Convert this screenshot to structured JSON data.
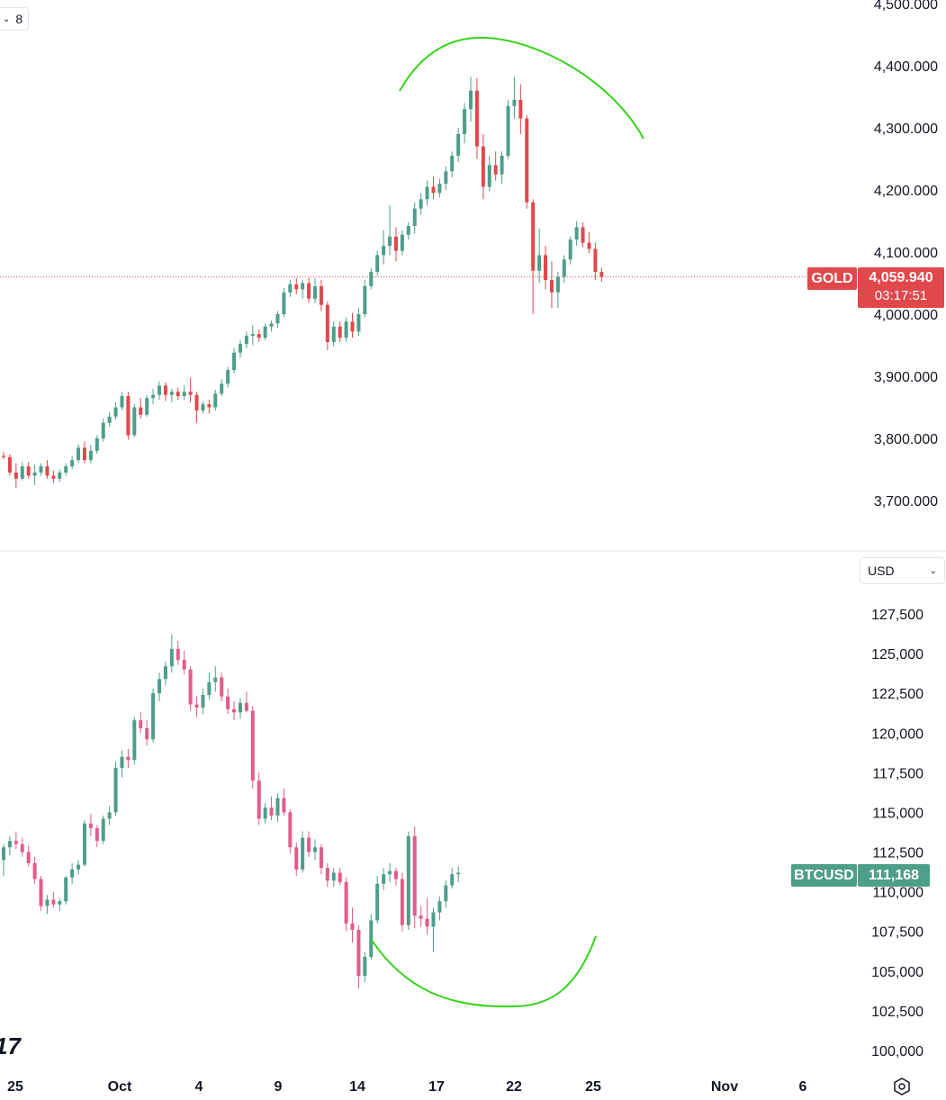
{
  "chart_data": [
    {
      "type": "candlestick",
      "symbol": "GOLD",
      "ylim": [
        3650,
        4500
      ],
      "y_ticks": [
        "4,500.000",
        "4,400.000",
        "4,300.000",
        "4,200.000",
        "4,100.000",
        "4,000.000",
        "3,900.000",
        "3,800.000",
        "3,700.000"
      ],
      "y_tick_values": [
        4500,
        4400,
        4300,
        4200,
        4100,
        4000,
        3900,
        3800,
        3700
      ],
      "last_price": 4059.94,
      "last_price_label": "4,059.940",
      "countdown": "03:17:51",
      "candles": [
        [
          3772,
          3778,
          3766,
          3770
        ],
        [
          3770,
          3775,
          3740,
          3745
        ],
        [
          3745,
          3760,
          3720,
          3735
        ],
        [
          3735,
          3762,
          3732,
          3755
        ],
        [
          3755,
          3762,
          3735,
          3740
        ],
        [
          3740,
          3758,
          3725,
          3745
        ],
        [
          3745,
          3760,
          3740,
          3755
        ],
        [
          3755,
          3765,
          3735,
          3740
        ],
        [
          3740,
          3748,
          3728,
          3735
        ],
        [
          3735,
          3750,
          3730,
          3745
        ],
        [
          3745,
          3760,
          3740,
          3755
        ],
        [
          3755,
          3772,
          3750,
          3765
        ],
        [
          3765,
          3790,
          3760,
          3785
        ],
        [
          3785,
          3795,
          3760,
          3765
        ],
        [
          3765,
          3790,
          3760,
          3780
        ],
        [
          3780,
          3805,
          3775,
          3800
        ],
        [
          3800,
          3832,
          3795,
          3825
        ],
        [
          3825,
          3842,
          3818,
          3835
        ],
        [
          3835,
          3858,
          3830,
          3850
        ],
        [
          3850,
          3875,
          3845,
          3868
        ],
        [
          3868,
          3875,
          3798,
          3805
        ],
        [
          3805,
          3855,
          3802,
          3850
        ],
        [
          3850,
          3865,
          3832,
          3838
        ],
        [
          3838,
          3870,
          3835,
          3865
        ],
        [
          3865,
          3880,
          3855,
          3870
        ],
        [
          3870,
          3892,
          3862,
          3885
        ],
        [
          3885,
          3890,
          3860,
          3870
        ],
        [
          3870,
          3880,
          3858,
          3875
        ],
        [
          3875,
          3882,
          3862,
          3868
        ],
        [
          3868,
          3885,
          3862,
          3875
        ],
        [
          3875,
          3898,
          3858,
          3870
        ],
        [
          3870,
          3875,
          3825,
          3845
        ],
        [
          3845,
          3860,
          3840,
          3855
        ],
        [
          3855,
          3862,
          3840,
          3850
        ],
        [
          3850,
          3878,
          3845,
          3872
        ],
        [
          3872,
          3895,
          3868,
          3888
        ],
        [
          3888,
          3915,
          3882,
          3910
        ],
        [
          3910,
          3945,
          3905,
          3938
        ],
        [
          3938,
          3958,
          3930,
          3952
        ],
        [
          3952,
          3972,
          3945,
          3965
        ],
        [
          3965,
          3982,
          3950,
          3968
        ],
        [
          3968,
          3975,
          3955,
          3962
        ],
        [
          3962,
          3985,
          3958,
          3980
        ],
        [
          3980,
          3990,
          3972,
          3985
        ],
        [
          3985,
          4005,
          3978,
          4000
        ],
        [
          4000,
          4042,
          3995,
          4035
        ],
        [
          4035,
          4055,
          4028,
          4048
        ],
        [
          4048,
          4058,
          4032,
          4040
        ],
        [
          4040,
          4055,
          4025,
          4050
        ],
        [
          4050,
          4058,
          4018,
          4025
        ],
        [
          4025,
          4058,
          4018,
          4045
        ],
        [
          4045,
          4055,
          4005,
          4015
        ],
        [
          4015,
          4020,
          3942,
          3955
        ],
        [
          3955,
          3988,
          3948,
          3980
        ],
        [
          3980,
          3988,
          3955,
          3962
        ],
        [
          3962,
          3995,
          3955,
          3988
        ],
        [
          3988,
          4002,
          3962,
          3972
        ],
        [
          3972,
          4010,
          3965,
          4000
        ],
        [
          4000,
          4055,
          3995,
          4045
        ],
        [
          4045,
          4075,
          4040,
          4068
        ],
        [
          4068,
          4102,
          4062,
          4095
        ],
        [
          4095,
          4135,
          4080,
          4110
        ],
        [
          4110,
          4175,
          4095,
          4125
        ],
        [
          4125,
          4140,
          4085,
          4102
        ],
        [
          4102,
          4135,
          4095,
          4128
        ],
        [
          4128,
          4148,
          4120,
          4142
        ],
        [
          4142,
          4180,
          4130,
          4170
        ],
        [
          4170,
          4195,
          4160,
          4185
        ],
        [
          4185,
          4215,
          4175,
          4205
        ],
        [
          4205,
          4222,
          4185,
          4195
        ],
        [
          4195,
          4218,
          4188,
          4210
        ],
        [
          4210,
          4238,
          4200,
          4230
        ],
        [
          4230,
          4262,
          4220,
          4255
        ],
        [
          4255,
          4300,
          4245,
          4290
        ],
        [
          4290,
          4340,
          4275,
          4330
        ],
        [
          4330,
          4382,
          4310,
          4360
        ],
        [
          4360,
          4380,
          4250,
          4270
        ],
        [
          4270,
          4290,
          4185,
          4205
        ],
        [
          4205,
          4255,
          4198,
          4240
        ],
        [
          4240,
          4262,
          4215,
          4225
        ],
        [
          4225,
          4262,
          4210,
          4255
        ],
        [
          4255,
          4345,
          4250,
          4335
        ],
        [
          4335,
          4382,
          4315,
          4345
        ],
        [
          4345,
          4370,
          4290,
          4315
        ],
        [
          4315,
          4320,
          4170,
          4180
        ],
        [
          4180,
          4185,
          4000,
          4070
        ],
        [
          4070,
          4138,
          4050,
          4095
        ],
        [
          4095,
          4110,
          4040,
          4055
        ],
        [
          4055,
          4085,
          4010,
          4035
        ],
        [
          4035,
          4068,
          4010,
          4060
        ],
        [
          4060,
          4095,
          4050,
          4088
        ],
        [
          4088,
          4125,
          4080,
          4120
        ],
        [
          4120,
          4150,
          4110,
          4140
        ],
        [
          4140,
          4148,
          4108,
          4115
        ],
        [
          4115,
          4132,
          4098,
          4105
        ],
        [
          4105,
          4115,
          4055,
          4068
        ],
        [
          4068,
          4075,
          4052,
          4060
        ]
      ]
    },
    {
      "type": "candlestick",
      "symbol": "BTCUSD",
      "currency_select": "USD",
      "ylim": [
        99000,
        130000
      ],
      "y_ticks": [
        "127,500",
        "125,000",
        "122,500",
        "120,000",
        "117,500",
        "115,000",
        "112,500",
        "110,000",
        "107,500",
        "105,000",
        "102,500",
        "100,000"
      ],
      "y_tick_values": [
        127500,
        125000,
        122500,
        120000,
        117500,
        115000,
        112500,
        110000,
        107500,
        105000,
        102500,
        100000
      ],
      "last_price": 111168,
      "last_price_label": "111,168",
      "candles": [
        [
          112000,
          113000,
          111000,
          112800
        ],
        [
          112800,
          113500,
          112300,
          113200
        ],
        [
          113200,
          113800,
          112700,
          113000
        ],
        [
          113000,
          113400,
          112200,
          112500
        ],
        [
          112500,
          112900,
          111600,
          111800
        ],
        [
          111800,
          112200,
          110500,
          110800
        ],
        [
          110800,
          111000,
          108800,
          109100
        ],
        [
          109100,
          109800,
          108600,
          109500
        ],
        [
          109500,
          110000,
          109000,
          109200
        ],
        [
          109200,
          109600,
          108800,
          109400
        ],
        [
          109400,
          111000,
          109200,
          110900
        ],
        [
          110900,
          111800,
          110500,
          111400
        ],
        [
          111400,
          112000,
          111100,
          111700
        ],
        [
          111700,
          114500,
          111600,
          114300
        ],
        [
          114300,
          114900,
          113500,
          114000
        ],
        [
          114000,
          114200,
          112800,
          113200
        ],
        [
          113200,
          114800,
          113000,
          114600
        ],
        [
          114600,
          115400,
          114200,
          115000
        ],
        [
          115000,
          118200,
          114800,
          117800
        ],
        [
          117800,
          118900,
          117200,
          118500
        ],
        [
          118500,
          119000,
          117800,
          118300
        ],
        [
          118300,
          121000,
          118000,
          120800
        ],
        [
          120800,
          121300,
          120000,
          120300
        ],
        [
          120300,
          120800,
          119200,
          119600
        ],
        [
          119600,
          122800,
          119400,
          122500
        ],
        [
          122500,
          123800,
          122000,
          123400
        ],
        [
          123400,
          124500,
          123000,
          124200
        ],
        [
          124200,
          126200,
          123800,
          125300
        ],
        [
          125300,
          125800,
          124300,
          124600
        ],
        [
          124600,
          125200,
          123700,
          124000
        ],
        [
          124000,
          124200,
          121400,
          121800
        ],
        [
          121800,
          122300,
          121000,
          121600
        ],
        [
          121600,
          122800,
          121200,
          122400
        ],
        [
          122400,
          123800,
          122100,
          123200
        ],
        [
          123200,
          124200,
          122600,
          123500
        ],
        [
          123500,
          123800,
          122000,
          122300
        ],
        [
          122300,
          122800,
          121200,
          121500
        ],
        [
          121500,
          122000,
          120800,
          121300
        ],
        [
          121300,
          122200,
          120900,
          121900
        ],
        [
          121900,
          122600,
          121300,
          121400
        ],
        [
          121400,
          121700,
          116500,
          117000
        ],
        [
          117000,
          117500,
          114200,
          114600
        ],
        [
          114600,
          115600,
          114300,
          115300
        ],
        [
          115300,
          116000,
          114500,
          114800
        ],
        [
          114800,
          116200,
          114400,
          115900
        ],
        [
          115900,
          116500,
          114800,
          115000
        ],
        [
          115000,
          115200,
          112400,
          112800
        ],
        [
          112800,
          113100,
          111000,
          111400
        ],
        [
          111400,
          113800,
          111200,
          113400
        ],
        [
          113400,
          113800,
          112200,
          112500
        ],
        [
          112500,
          113300,
          112000,
          112800
        ],
        [
          112800,
          113000,
          111100,
          111500
        ],
        [
          111500,
          111800,
          110300,
          110700
        ],
        [
          110700,
          111500,
          110300,
          111200
        ],
        [
          111200,
          111500,
          110400,
          110600
        ],
        [
          110600,
          110900,
          107500,
          108000
        ],
        [
          108000,
          109000,
          106800,
          107600
        ],
        [
          107600,
          107900,
          103900,
          104700
        ],
        [
          104700,
          106200,
          104300,
          105900
        ],
        [
          105900,
          108600,
          105700,
          108200
        ],
        [
          108200,
          111000,
          108000,
          110500
        ],
        [
          110500,
          111500,
          110100,
          111100
        ],
        [
          111100,
          111800,
          110600,
          111300
        ],
        [
          111300,
          111500,
          110400,
          110800
        ],
        [
          110800,
          111200,
          107500,
          107900
        ],
        [
          107900,
          113800,
          107600,
          113500
        ],
        [
          113500,
          114100,
          107700,
          108500
        ],
        [
          108500,
          109100,
          107800,
          108300
        ],
        [
          108300,
          109600,
          107300,
          107800
        ],
        [
          107800,
          109000,
          106200,
          108700
        ],
        [
          108700,
          109700,
          108200,
          109400
        ],
        [
          109400,
          110700,
          109000,
          110400
        ],
        [
          110400,
          111500,
          110200,
          111100
        ],
        [
          111100,
          111600,
          110600,
          111200
        ]
      ]
    }
  ],
  "time_axis": {
    "labels": [
      "25",
      "Oct",
      "4",
      "9",
      "14",
      "17",
      "22",
      "25",
      "Nov",
      "6"
    ]
  },
  "ui": {
    "collapse_count": "8",
    "gold_symbol": "GOLD",
    "btc_symbol": "BTCUSD",
    "currency": "USD",
    "logo_text": "17"
  },
  "colors": {
    "up": "#4d9e8a",
    "down": "#e0484c",
    "btc_down": "#e35b8a",
    "annotation": "#35d31a"
  }
}
